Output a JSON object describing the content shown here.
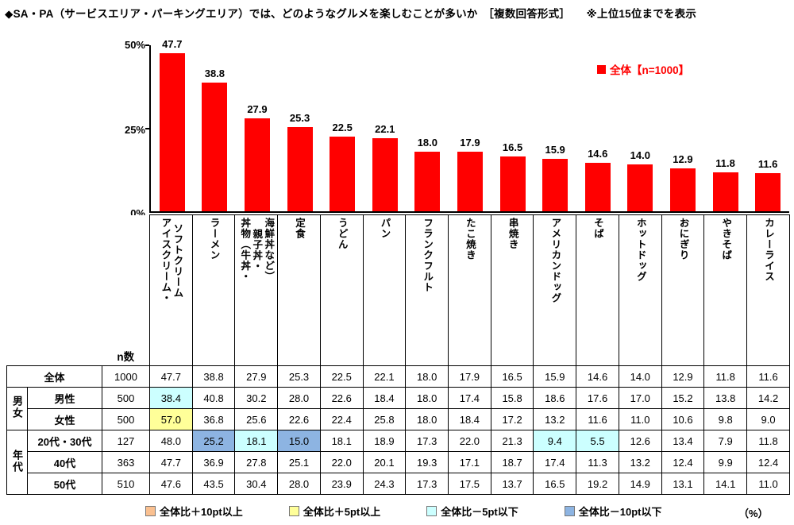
{
  "page": {
    "title": "◆SA・PA（サービスエリア・パーキングエリア）では、どのようなグルメを楽しむことが多いか　［複数回答形式］　　※上位15位までを表示",
    "percent_note": "（%）"
  },
  "chart_data": {
    "type": "bar",
    "title": "SA・PAでは、どのようなグルメを楽しむことが多いか（複数回答形式・上位15位）",
    "legend": "全体【n=1000】",
    "legend_position": "top-right",
    "bar_color": "#ff0000",
    "grid": false,
    "xlabel": "",
    "ylabel": "",
    "ylim": [
      0,
      50
    ],
    "yticks": [
      "50%",
      "25%",
      "0%"
    ],
    "categories": [
      "アイスクリーム・\nソフトクリーム",
      "ラーメン",
      "丼物（牛丼・\n親子丼・\n海鮮丼など）",
      "定食",
      "うどん",
      "パン",
      "フランクフルト",
      "たこ焼き",
      "串焼き",
      "アメリカンドッグ",
      "そば",
      "ホットドッグ",
      "おにぎり",
      "やきそば",
      "カレーライス"
    ],
    "values": [
      "47.7",
      "38.8",
      "27.9",
      "25.3",
      "22.5",
      "22.1",
      "18.0",
      "17.9",
      "16.5",
      "15.9",
      "14.6",
      "14.0",
      "12.9",
      "11.8",
      "11.6"
    ]
  },
  "table": {
    "n_header": "n数",
    "row_groups": [
      {
        "group": "",
        "rows": [
          {
            "label": "全体",
            "n": "1000",
            "values": [
              "47.7",
              "38.8",
              "27.9",
              "25.3",
              "22.5",
              "22.1",
              "18.0",
              "17.9",
              "16.5",
              "15.9",
              "14.6",
              "14.0",
              "12.9",
              "11.8",
              "11.6"
            ],
            "highlights": {}
          }
        ]
      },
      {
        "group": "男女",
        "rows": [
          {
            "label": "男性",
            "n": "500",
            "values": [
              "38.4",
              "40.8",
              "30.2",
              "28.0",
              "22.6",
              "18.4",
              "18.0",
              "17.4",
              "15.8",
              "18.6",
              "17.6",
              "17.0",
              "15.2",
              "13.8",
              "14.2"
            ],
            "highlights": {
              "0": "minus5"
            }
          },
          {
            "label": "女性",
            "n": "500",
            "values": [
              "57.0",
              "36.8",
              "25.6",
              "22.6",
              "22.4",
              "25.8",
              "18.0",
              "18.4",
              "17.2",
              "13.2",
              "11.6",
              "11.0",
              "10.6",
              "9.8",
              "9.0"
            ],
            "highlights": {
              "0": "plus5"
            }
          }
        ]
      },
      {
        "group": "年代",
        "rows": [
          {
            "label": "20代・30代",
            "n": "127",
            "values": [
              "48.0",
              "25.2",
              "18.1",
              "15.0",
              "18.1",
              "18.9",
              "17.3",
              "22.0",
              "21.3",
              "9.4",
              "5.5",
              "12.6",
              "13.4",
              "7.9",
              "11.8"
            ],
            "highlights": {
              "1": "minus10",
              "2": "minus5",
              "3": "minus10",
              "9": "minus5",
              "10": "minus5"
            }
          },
          {
            "label": "40代",
            "n": "363",
            "values": [
              "47.7",
              "36.9",
              "27.8",
              "25.1",
              "22.0",
              "20.1",
              "19.3",
              "17.1",
              "18.7",
              "17.4",
              "11.3",
              "13.2",
              "12.4",
              "9.9",
              "12.4"
            ],
            "highlights": {}
          },
          {
            "label": "50代",
            "n": "510",
            "values": [
              "47.6",
              "43.5",
              "30.4",
              "28.0",
              "23.9",
              "24.3",
              "17.3",
              "17.5",
              "13.7",
              "16.5",
              "19.2",
              "14.9",
              "13.1",
              "14.1",
              "11.0"
            ],
            "highlights": {}
          }
        ]
      }
    ]
  },
  "diff_legend": {
    "items": [
      {
        "key": "plus10",
        "label": "全体比＋10pt以上",
        "color": "#FAC090"
      },
      {
        "key": "plus5",
        "label": "全体比＋5pt以上",
        "color": "#FFFF99"
      },
      {
        "key": "minus5",
        "label": "全体比－5pt以下",
        "color": "#CCFFFF"
      },
      {
        "key": "minus10",
        "label": "全体比－10pt以下",
        "color": "#8DB4E2"
      }
    ]
  }
}
